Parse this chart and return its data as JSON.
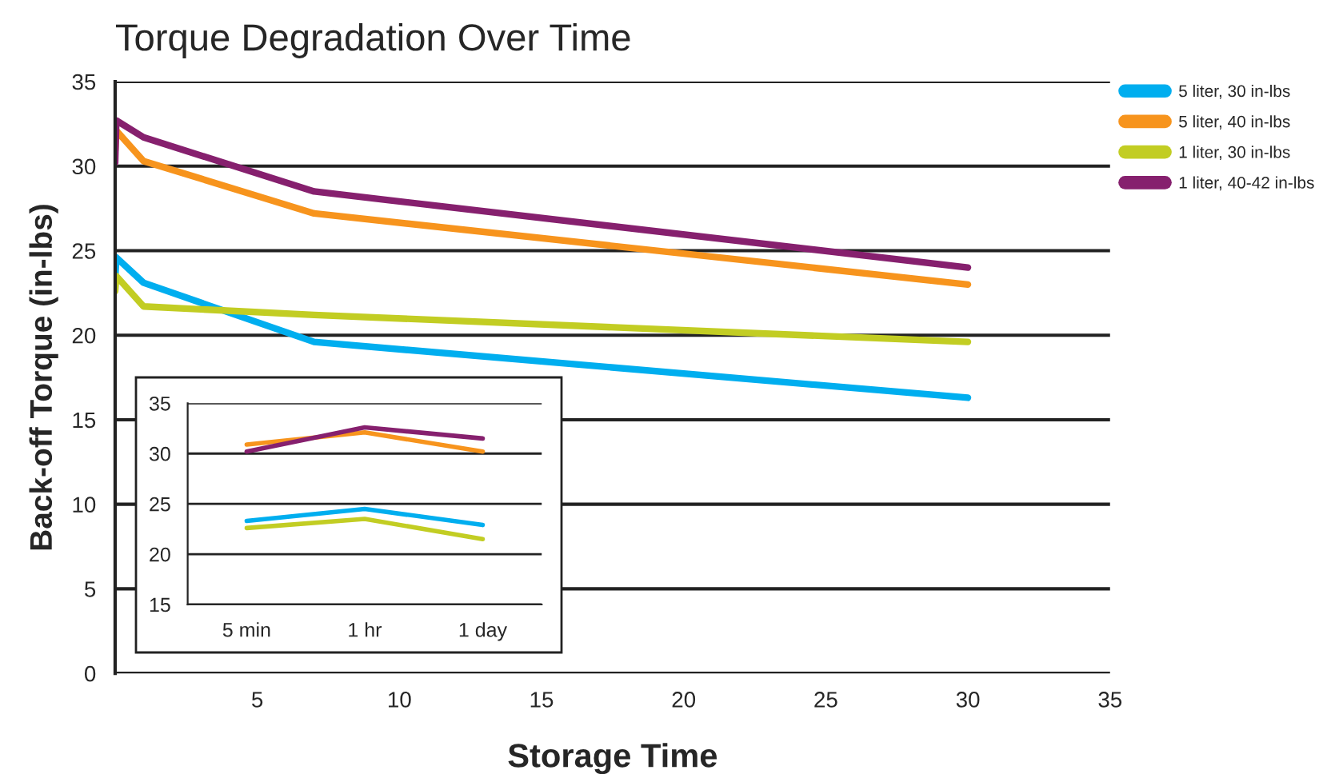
{
  "chart_data": [
    {
      "type": "line",
      "title": "Torque Degradation Over Time",
      "xlabel": "Storage Time",
      "ylabel": "Back-off Torque (in-lbs)",
      "xlim": [
        0,
        35
      ],
      "xticks": [
        5,
        10,
        15,
        20,
        25,
        30,
        35
      ],
      "ylim": [
        0,
        35
      ],
      "yticks": [
        0,
        5,
        10,
        15,
        20,
        25,
        30,
        35
      ],
      "grid": "y",
      "legend": "right",
      "marker": "none",
      "line_style": "solid",
      "series": [
        {
          "name": "5 liter, 30 in-lbs",
          "color": "#00aeef",
          "x": [
            0,
            0.04,
            1,
            7,
            30
          ],
          "values": [
            23.3,
            24.6,
            23.1,
            19.6,
            16.3
          ]
        },
        {
          "name": "5 liter, 40 in-lbs",
          "color": "#f7941d",
          "x": [
            0,
            0.04,
            1,
            7,
            30
          ],
          "values": [
            30.9,
            32.1,
            30.3,
            27.2,
            23.0
          ]
        },
        {
          "name": "1 liter, 30 in-lbs",
          "color": "#c2cd23",
          "x": [
            0,
            0.04,
            1,
            7,
            30
          ],
          "values": [
            22.6,
            23.5,
            21.7,
            21.2,
            19.6
          ]
        },
        {
          "name": "1 liter, 40-42 in-lbs",
          "color": "#86206e",
          "x": [
            0,
            0.04,
            1,
            7,
            30
          ],
          "values": [
            30.2,
            32.7,
            31.7,
            28.5,
            24.0
          ]
        }
      ]
    },
    {
      "type": "line",
      "categories": [
        "5 min",
        "1 hr",
        "1 day"
      ],
      "ylim": [
        15,
        35
      ],
      "yticks": [
        15,
        20,
        25,
        30,
        35
      ],
      "grid": "y",
      "marker": "none",
      "line_style": "solid",
      "series": [
        {
          "color": "#00aeef",
          "values": [
            23.3,
            24.5,
            22.9
          ]
        },
        {
          "color": "#f7941d",
          "values": [
            30.9,
            32.1,
            30.2
          ]
        },
        {
          "color": "#c2cd23",
          "values": [
            22.6,
            23.5,
            21.5
          ]
        },
        {
          "color": "#86206e",
          "values": [
            30.2,
            32.6,
            31.5
          ]
        }
      ]
    }
  ]
}
